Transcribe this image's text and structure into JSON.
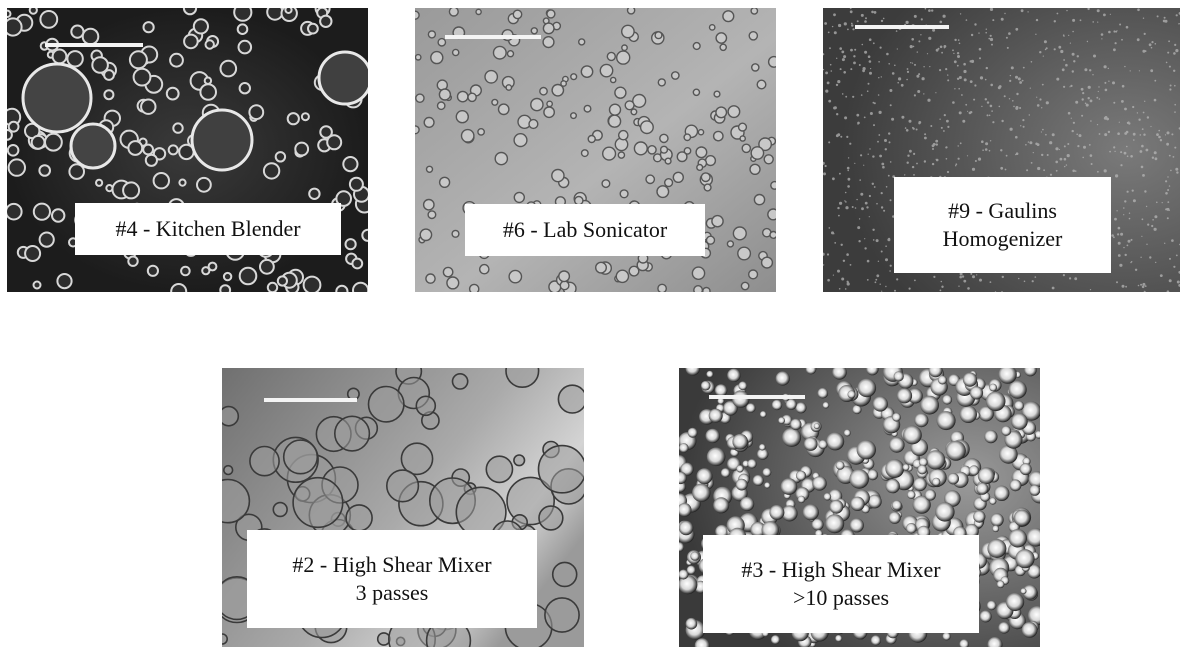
{
  "panels": [
    {
      "id": "p4",
      "caption_lines": [
        "#4 - Kitchen Blender"
      ]
    },
    {
      "id": "p6",
      "caption_lines": [
        "#6 - Lab Sonicator"
      ]
    },
    {
      "id": "p9",
      "caption_lines": [
        "#9 - Gaulins",
        "Homogenizer"
      ]
    },
    {
      "id": "p2",
      "caption_lines": [
        "#2 - High Shear Mixer",
        "3 passes"
      ]
    },
    {
      "id": "p3",
      "caption_lines": [
        "#3 - High Shear Mixer",
        ">10 passes"
      ]
    }
  ],
  "colors": {
    "background": "#ffffff",
    "dark_field": "#2a2a2a",
    "light_field": "#a8a8a8",
    "scalebar": "#f4f4f4"
  }
}
